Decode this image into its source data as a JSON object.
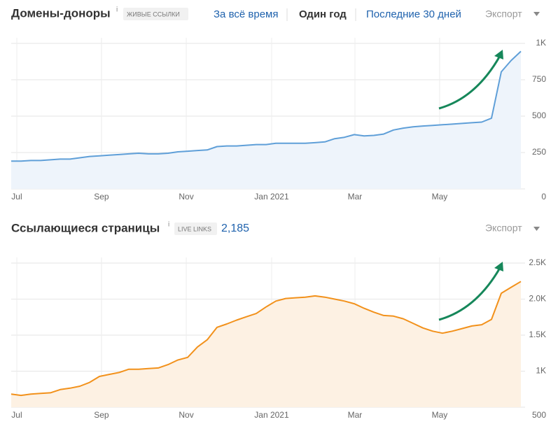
{
  "period_tabs": [
    "За всё время",
    "Один год",
    "Последние 30 дней"
  ],
  "active_tab": 1,
  "chart_data": [
    {
      "type": "line",
      "title": "Домены-доноры",
      "info": "i",
      "badge": "ЖИВЫЕ ССЫЛКИ",
      "export": "Экспорт",
      "color": "#5f9fd8",
      "fill": "#eef4fb",
      "values": [
        191,
        191,
        195,
        195,
        200,
        205,
        205,
        214,
        223,
        227,
        232,
        236,
        241,
        245,
        241,
        241,
        245,
        255,
        259,
        264,
        268,
        291,
        295,
        295,
        300,
        305,
        305,
        314,
        314,
        314,
        314,
        318,
        323,
        345,
        355,
        373,
        364,
        368,
        377,
        405,
        418,
        427,
        432,
        436,
        441,
        445,
        450,
        455,
        459,
        486,
        805,
        882,
        945
      ],
      "xlim": [
        0,
        52
      ],
      "xticks": [
        {
          "value": 0.57,
          "label": "Jul"
        },
        {
          "value": 9.21,
          "label": "Sep"
        },
        {
          "value": 17.86,
          "label": "Nov"
        },
        {
          "value": 26.57,
          "label": "Jan 2021"
        },
        {
          "value": 35.07,
          "label": "Mar"
        },
        {
          "value": 43.71,
          "label": "May"
        }
      ],
      "ylim": [
        0,
        1000
      ],
      "yticks": [
        0,
        250,
        500,
        750,
        {
          "value": 1000,
          "label": "1K"
        }
      ]
    },
    {
      "type": "line",
      "title": "Ссылающиеся страницы",
      "info": "i",
      "badge": "LIVE LINKS",
      "total": "2,185",
      "export": "Экспорт",
      "color": "#f2911b",
      "fill": "#fdf1e3",
      "values": [
        682,
        664,
        682,
        691,
        700,
        745,
        764,
        791,
        845,
        927,
        955,
        982,
        1027,
        1027,
        1036,
        1045,
        1091,
        1155,
        1191,
        1336,
        1436,
        1609,
        1655,
        1709,
        1755,
        1800,
        1891,
        1973,
        2009,
        2018,
        2027,
        2045,
        2027,
        2000,
        1973,
        1936,
        1873,
        1818,
        1773,
        1764,
        1727,
        1664,
        1600,
        1555,
        1527,
        1555,
        1591,
        1627,
        1645,
        1718,
        2082,
        2164,
        2245
      ],
      "xlim": [
        0,
        52
      ],
      "xticks": [
        {
          "value": 0.57,
          "label": "Jul"
        },
        {
          "value": 9.21,
          "label": "Sep"
        },
        {
          "value": 17.86,
          "label": "Nov"
        },
        {
          "value": 26.57,
          "label": "Jan 2021"
        },
        {
          "value": 35.07,
          "label": "Mar"
        },
        {
          "value": 43.71,
          "label": "May"
        }
      ],
      "ylim": [
        500,
        2500
      ],
      "yticks": [
        500,
        {
          "value": 1000,
          "label": "1K"
        },
        {
          "value": 1500,
          "label": "1.5K"
        },
        {
          "value": 2000,
          "label": "2.0K"
        },
        {
          "value": 2500,
          "label": "2.5K"
        }
      ]
    }
  ]
}
